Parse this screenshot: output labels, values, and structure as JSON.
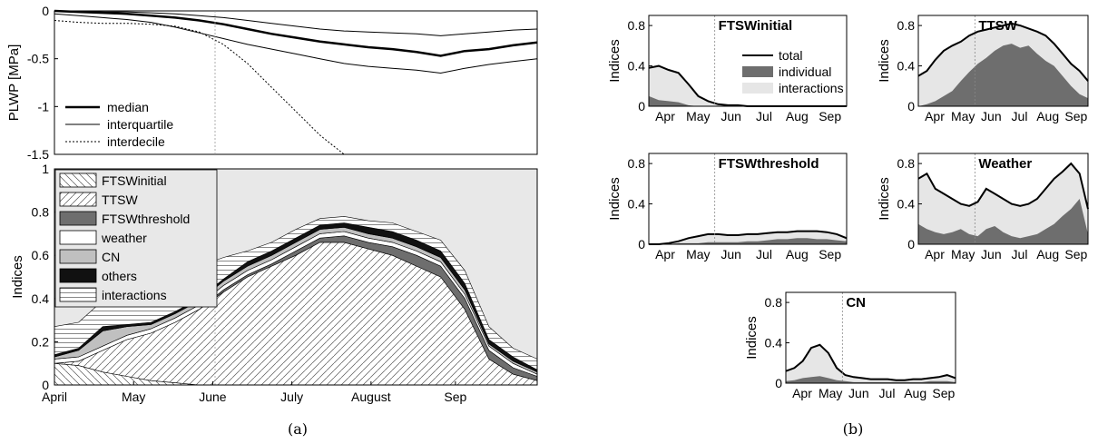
{
  "chart_data": [
    {
      "id": "plwp",
      "type": "line",
      "ylabel": "PLWP [MPa]",
      "ylim": [
        -1.5,
        0
      ],
      "yticks": [
        "0",
        "-0.5",
        "-1",
        "-1.5"
      ],
      "xticks": [],
      "x": [
        0,
        10,
        20,
        30,
        40,
        50,
        60,
        70,
        80,
        90,
        100,
        110,
        120,
        130,
        140,
        150,
        160,
        170,
        180,
        190,
        200
      ],
      "series": [
        {
          "name": "median",
          "style": "thick",
          "values": [
            0,
            -0.01,
            -0.02,
            -0.03,
            -0.05,
            -0.07,
            -0.1,
            -0.14,
            -0.19,
            -0.24,
            -0.28,
            -0.32,
            -0.35,
            -0.38,
            -0.4,
            -0.43,
            -0.47,
            -0.42,
            -0.4,
            -0.36,
            -0.33
          ]
        },
        {
          "name": "interquartile",
          "style": "thin",
          "values": [
            -0.005,
            -0.005,
            -0.01,
            -0.01,
            -0.02,
            -0.03,
            -0.05,
            -0.07,
            -0.1,
            -0.13,
            -0.16,
            -0.19,
            -0.21,
            -0.22,
            -0.23,
            -0.24,
            -0.26,
            -0.24,
            -0.22,
            -0.2,
            -0.19
          ]
        },
        {
          "name": "",
          "style": "thin",
          "values": [
            -0.03,
            -0.05,
            -0.07,
            -0.09,
            -0.12,
            -0.17,
            -0.23,
            -0.29,
            -0.35,
            -0.4,
            -0.45,
            -0.5,
            -0.55,
            -0.58,
            -0.6,
            -0.62,
            -0.65,
            -0.6,
            -0.56,
            -0.53,
            -0.5
          ]
        },
        {
          "name": "interdecile",
          "style": "dotted",
          "values": [
            -0.1,
            -0.12,
            -0.13,
            -0.13,
            -0.14,
            -0.16,
            -0.22,
            -0.35,
            -0.55,
            -0.8,
            -1.05,
            -1.3,
            -1.5,
            -1.5,
            -1.5,
            -1.5,
            -1.5,
            -1.5,
            -1.5,
            -1.5,
            -1.5
          ]
        }
      ],
      "legend": [
        "median",
        "interquartile",
        "interdecile"
      ]
    },
    {
      "id": "indices",
      "type": "area",
      "ylabel": "Indices",
      "ylim": [
        0,
        1
      ],
      "yticks": [
        "0",
        "0.2",
        "0.4",
        "0.6",
        "0.8",
        "1"
      ],
      "xticks": [
        "April",
        "May",
        "June",
        "July",
        "August",
        "Sep"
      ],
      "x": [
        0,
        10,
        20,
        30,
        40,
        50,
        60,
        70,
        80,
        90,
        100,
        110,
        120,
        130,
        140,
        150,
        160,
        170,
        180,
        190,
        200
      ],
      "series": [
        {
          "name": "FTSWinitial",
          "values": [
            0.1,
            0.09,
            0.06,
            0.04,
            0.02,
            0.01,
            0,
            0,
            0,
            0,
            0,
            0,
            0,
            0,
            0,
            0,
            0,
            0,
            0,
            0,
            0
          ]
        },
        {
          "name": "TTSW",
          "values": [
            0,
            0.02,
            0.1,
            0.17,
            0.22,
            0.28,
            0.35,
            0.43,
            0.5,
            0.55,
            0.6,
            0.66,
            0.66,
            0.63,
            0.6,
            0.55,
            0.5,
            0.35,
            0.12,
            0.05,
            0.02
          ]
        },
        {
          "name": "FTSWthreshold",
          "values": [
            0,
            0,
            0,
            0,
            0,
            0,
            0,
            0.01,
            0.01,
            0.01,
            0.02,
            0.02,
            0.03,
            0.03,
            0.04,
            0.05,
            0.05,
            0.05,
            0.04,
            0.03,
            0.02
          ]
        },
        {
          "name": "weather",
          "values": [
            0.02,
            0.02,
            0.02,
            0.02,
            0.02,
            0.02,
            0.02,
            0.02,
            0.02,
            0.02,
            0.02,
            0.02,
            0.02,
            0.02,
            0.02,
            0.02,
            0.02,
            0.02,
            0.02,
            0.02,
            0.01
          ]
        },
        {
          "name": "CN",
          "values": [
            0.01,
            0.03,
            0.07,
            0.04,
            0.02,
            0.02,
            0.02,
            0.02,
            0.02,
            0.02,
            0.02,
            0.02,
            0.02,
            0.02,
            0.02,
            0.02,
            0.02,
            0.02,
            0.01,
            0.01,
            0.01
          ]
        },
        {
          "name": "others",
          "values": [
            0.01,
            0.01,
            0.02,
            0.01,
            0.01,
            0.01,
            0.01,
            0.01,
            0.02,
            0.02,
            0.02,
            0.02,
            0.02,
            0.03,
            0.03,
            0.03,
            0.03,
            0.03,
            0.02,
            0.02,
            0.01
          ]
        },
        {
          "name": "interactions",
          "values": [
            0.13,
            0.12,
            0.12,
            0.1,
            0.13,
            0.16,
            0.15,
            0.1,
            0.05,
            0.04,
            0.04,
            0.03,
            0.03,
            0.03,
            0.04,
            0.04,
            0.05,
            0.06,
            0.06,
            0.04,
            0.05
          ]
        }
      ],
      "legend": [
        "FTSWinitial",
        "TTSW",
        "FTSWthreshold",
        "weather",
        "CN",
        "others",
        "interactions"
      ]
    },
    {
      "id": "ftswinitial",
      "type": "area",
      "title": "FTSWinitial",
      "ylabel": "Indices",
      "ylim": [
        0,
        0.9
      ],
      "yticks": [
        "0",
        "0.4",
        "0.8"
      ],
      "xticks": [
        "Apr",
        "May",
        "Jun",
        "Jul",
        "Aug",
        "Sep"
      ],
      "x": [
        0,
        1,
        2,
        3,
        4,
        5,
        6,
        7,
        8,
        9,
        10,
        11,
        12,
        13,
        14,
        15,
        16,
        17,
        18,
        19,
        20
      ],
      "total": [
        0.38,
        0.4,
        0.36,
        0.33,
        0.22,
        0.1,
        0.05,
        0.02,
        0.01,
        0.01,
        0,
        0,
        0,
        0,
        0,
        0,
        0,
        0,
        0,
        0,
        0
      ],
      "individual": [
        0.1,
        0.06,
        0.05,
        0.04,
        0.01,
        0,
        0,
        0,
        0,
        0,
        0,
        0,
        0,
        0,
        0,
        0,
        0,
        0,
        0,
        0,
        0
      ],
      "legend": [
        "total",
        "individual",
        "interactions"
      ]
    },
    {
      "id": "ttsw",
      "type": "area",
      "title": "TTSW",
      "ylabel": "Indices",
      "ylim": [
        0,
        0.9
      ],
      "yticks": [
        "0",
        "0.4",
        "0.8"
      ],
      "xticks": [
        "Apr",
        "May",
        "Jun",
        "Jul",
        "Aug",
        "Sep"
      ],
      "x": [
        0,
        1,
        2,
        3,
        4,
        5,
        6,
        7,
        8,
        9,
        10,
        11,
        12,
        13,
        14,
        15,
        16,
        17,
        18,
        19,
        20
      ],
      "total": [
        0.3,
        0.35,
        0.46,
        0.55,
        0.6,
        0.64,
        0.7,
        0.74,
        0.76,
        0.78,
        0.8,
        0.82,
        0.8,
        0.77,
        0.74,
        0.7,
        0.62,
        0.52,
        0.42,
        0.35,
        0.25
      ],
      "individual": [
        0,
        0.02,
        0.05,
        0.1,
        0.15,
        0.25,
        0.34,
        0.42,
        0.48,
        0.55,
        0.6,
        0.62,
        0.58,
        0.6,
        0.52,
        0.45,
        0.4,
        0.3,
        0.2,
        0.12,
        0.08
      ]
    },
    {
      "id": "ftswthreshold",
      "type": "area",
      "title": "FTSWthreshold",
      "ylabel": "Indices",
      "ylim": [
        0,
        0.9
      ],
      "yticks": [
        "0",
        "0.4",
        "0.8"
      ],
      "xticks": [
        "Apr",
        "May",
        "Jun",
        "Jul",
        "Aug",
        "Sep"
      ],
      "x": [
        0,
        1,
        2,
        3,
        4,
        5,
        6,
        7,
        8,
        9,
        10,
        11,
        12,
        13,
        14,
        15,
        16,
        17,
        18,
        19,
        20
      ],
      "total": [
        0,
        0,
        0.01,
        0.03,
        0.06,
        0.08,
        0.1,
        0.1,
        0.09,
        0.09,
        0.1,
        0.1,
        0.11,
        0.12,
        0.12,
        0.13,
        0.13,
        0.13,
        0.12,
        0.1,
        0.06
      ],
      "individual": [
        0,
        0,
        0,
        0.01,
        0.01,
        0.01,
        0.02,
        0.02,
        0.02,
        0.02,
        0.03,
        0.03,
        0.04,
        0.05,
        0.05,
        0.06,
        0.06,
        0.05,
        0.05,
        0.04,
        0.03
      ]
    },
    {
      "id": "weather",
      "type": "area",
      "title": "Weather",
      "ylabel": "Indices",
      "ylim": [
        0,
        0.9
      ],
      "yticks": [
        "0",
        "0.4",
        "0.8"
      ],
      "xticks": [
        "Apr",
        "May",
        "Jun",
        "Jul",
        "Aug",
        "Sep"
      ],
      "x": [
        0,
        1,
        2,
        3,
        4,
        5,
        6,
        7,
        8,
        9,
        10,
        11,
        12,
        13,
        14,
        15,
        16,
        17,
        18,
        19,
        20
      ],
      "total": [
        0.65,
        0.7,
        0.55,
        0.5,
        0.45,
        0.4,
        0.38,
        0.42,
        0.55,
        0.5,
        0.45,
        0.4,
        0.38,
        0.4,
        0.45,
        0.55,
        0.65,
        0.72,
        0.8,
        0.7,
        0.35
      ],
      "individual": [
        0.2,
        0.15,
        0.12,
        0.1,
        0.12,
        0.15,
        0.1,
        0.08,
        0.15,
        0.18,
        0.12,
        0.08,
        0.06,
        0.08,
        0.1,
        0.15,
        0.2,
        0.28,
        0.35,
        0.45,
        0.1
      ]
    },
    {
      "id": "cn",
      "type": "area",
      "title": "CN",
      "ylabel": "Indices",
      "ylim": [
        0,
        0.9
      ],
      "yticks": [
        "0",
        "0.4",
        "0.8"
      ],
      "xticks": [
        "Apr",
        "May",
        "Jun",
        "Jul",
        "Aug",
        "Sep"
      ],
      "x": [
        0,
        1,
        2,
        3,
        4,
        5,
        6,
        7,
        8,
        9,
        10,
        11,
        12,
        13,
        14,
        15,
        16,
        17,
        18,
        19,
        20
      ],
      "total": [
        0.12,
        0.15,
        0.22,
        0.35,
        0.38,
        0.3,
        0.15,
        0.08,
        0.06,
        0.05,
        0.04,
        0.04,
        0.04,
        0.03,
        0.03,
        0.04,
        0.04,
        0.05,
        0.06,
        0.08,
        0.05
      ],
      "individual": [
        0.02,
        0.03,
        0.05,
        0.06,
        0.07,
        0.05,
        0.03,
        0.02,
        0.01,
        0.01,
        0.01,
        0.01,
        0.01,
        0.01,
        0.01,
        0.01,
        0.01,
        0.02,
        0.02,
        0.02,
        0.01
      ]
    }
  ],
  "captions": {
    "a": "(a)",
    "b": "(b)"
  },
  "colors": {
    "panel_bg": "#e8e8e8",
    "individual": "#6e6e6e",
    "interactions": "#e6e6e6",
    "cn": "#c0c0c0",
    "others": "#111111"
  }
}
